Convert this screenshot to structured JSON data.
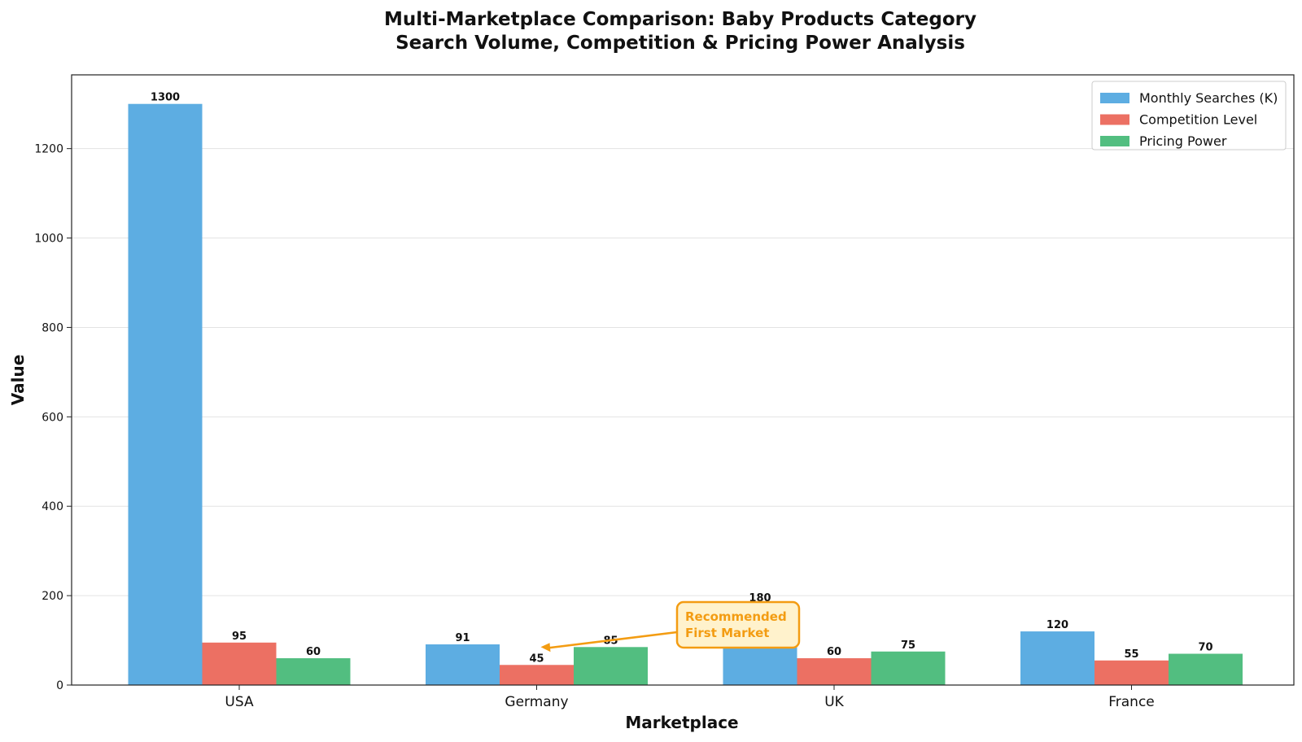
{
  "chart_data": {
    "type": "bar",
    "title": [
      "Multi-Marketplace Comparison: Baby Products Category",
      "Search Volume, Competition & Pricing Power Analysis"
    ],
    "xlabel": "Marketplace",
    "ylabel": "Value",
    "categories": [
      "USA",
      "Germany",
      "UK",
      "France"
    ],
    "series": [
      {
        "name": "Monthly Searches (K)",
        "color": "#5dade2",
        "values": [
          1300,
          91,
          180,
          120
        ]
      },
      {
        "name": "Competition Level",
        "color": "#ec7063",
        "values": [
          95,
          45,
          60,
          55
        ]
      },
      {
        "name": "Pricing Power",
        "color": "#52be80",
        "values": [
          60,
          85,
          75,
          70
        ]
      }
    ],
    "ylim": [
      0,
      1365
    ],
    "yticks": [
      0,
      200,
      400,
      600,
      800,
      1000,
      1200
    ],
    "grid": "y",
    "legend_position": "top-right",
    "annotation": {
      "text": [
        "Recommended",
        "First Market"
      ],
      "target_category": "Germany",
      "target_series": "Competition Level",
      "color": "#f39c12",
      "box_fill": "#fff2cc"
    }
  }
}
